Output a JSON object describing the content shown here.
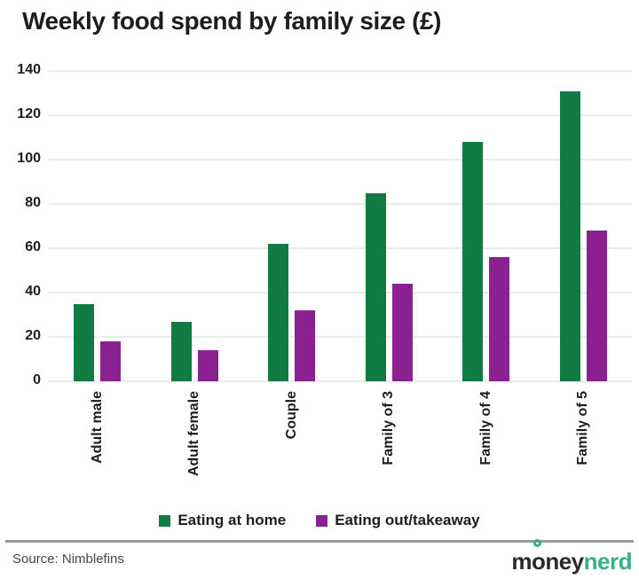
{
  "chart_data": {
    "type": "bar",
    "title": "Weekly food spend by family size (£)",
    "categories": [
      "Adult male",
      "Adult female",
      "Couple",
      "Family of 3",
      "Family of 4",
      "Family of 5"
    ],
    "series": [
      {
        "name": "Eating at home",
        "color": "#107c44",
        "values": [
          35,
          27,
          62,
          85,
          108,
          131
        ]
      },
      {
        "name": "Eating out/takeaway",
        "color": "#8b2190",
        "values": [
          18,
          14,
          32,
          44,
          56,
          68
        ]
      }
    ],
    "ylim": [
      0,
      140
    ],
    "yticks": [
      0,
      20,
      40,
      60,
      80,
      100,
      120,
      140
    ],
    "grid": true,
    "legend_position": "bottom"
  },
  "footer": {
    "source": "Source: Nimblefins",
    "logo": {
      "m": "m",
      "o": "o",
      "ney": "ney",
      "nerd": "nerd",
      "brand_dark": "#2b2b2b",
      "brand_green": "#35b284"
    }
  }
}
